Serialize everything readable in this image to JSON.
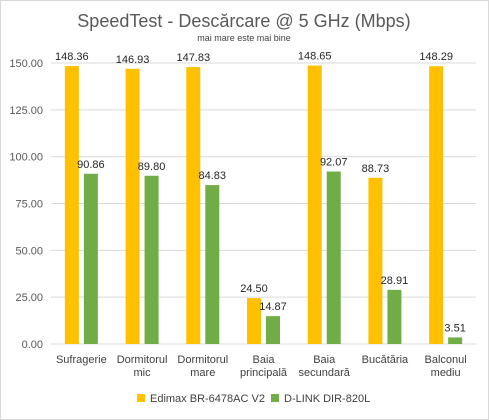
{
  "chart_data": {
    "type": "bar",
    "title": "SpeedTest - Descărcare @ 5 GHz (Mbps)",
    "subtitle": "mai mare este mai bine",
    "categories": [
      [
        "Sufragerie"
      ],
      [
        "Dormitorul",
        "mic"
      ],
      [
        "Dormitorul",
        "mare"
      ],
      [
        "Baia",
        "principală"
      ],
      [
        "Baia",
        "secundară"
      ],
      [
        "Bucătăria"
      ],
      [
        "Balconul",
        "mediu"
      ]
    ],
    "series": [
      {
        "name": "Edimax BR-6478AC V2",
        "color": "#ffc000",
        "values": [
          148.36,
          146.93,
          147.83,
          24.5,
          148.65,
          88.73,
          148.29
        ]
      },
      {
        "name": "D-LINK DIR-820L",
        "color": "#70ad47",
        "values": [
          90.86,
          89.8,
          84.83,
          14.87,
          92.07,
          28.91,
          3.51
        ]
      }
    ],
    "ylim": [
      0,
      150
    ],
    "yticks": [
      0,
      25,
      50,
      75,
      100,
      125,
      150
    ],
    "grid": true,
    "legend": "bottom"
  }
}
